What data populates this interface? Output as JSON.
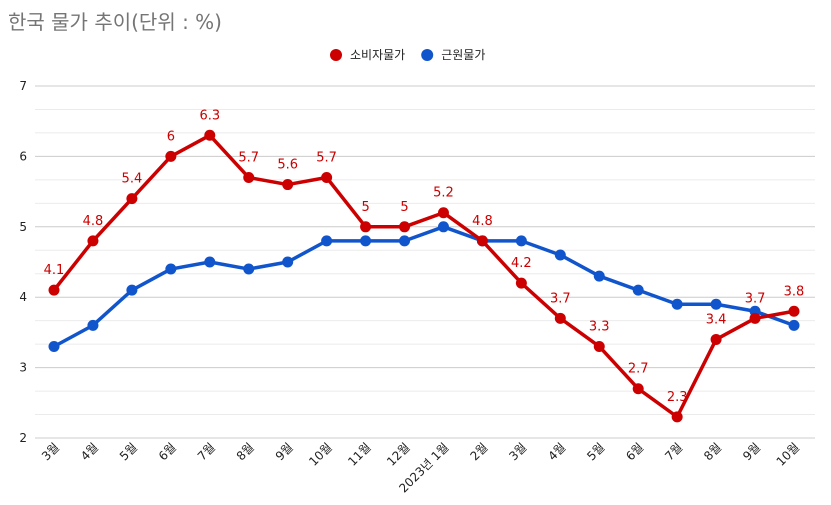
{
  "chart_data": {
    "type": "line",
    "title": "한국 물가 추이(단위 : %)",
    "categories": [
      "3월",
      "4월",
      "5월",
      "6월",
      "7월",
      "8월",
      "9월",
      "10월",
      "11월",
      "12월",
      "2023년 1월",
      "2월",
      "3월",
      "4월",
      "5월",
      "6월",
      "7월",
      "8월",
      "9월",
      "10월"
    ],
    "series": [
      {
        "name": "소비자물가",
        "color": "#cc0000",
        "values": [
          4.1,
          4.8,
          5.4,
          6,
          6.3,
          5.7,
          5.6,
          5.7,
          5,
          5,
          5.2,
          4.8,
          4.2,
          3.7,
          3.3,
          2.7,
          2.3,
          3.4,
          3.7,
          3.8
        ],
        "data_labels": true
      },
      {
        "name": "근원물가",
        "color": "#1155cc",
        "values": [
          3.3,
          3.6,
          4.1,
          4.4,
          4.5,
          4.4,
          4.5,
          4.8,
          4.8,
          4.8,
          5.0,
          4.8,
          4.8,
          4.6,
          4.3,
          4.1,
          3.9,
          3.9,
          3.8,
          3.6
        ],
        "data_labels": false
      }
    ],
    "ylim": [
      2,
      7
    ],
    "yticks": [
      2,
      3,
      4,
      5,
      6,
      7
    ],
    "grid": true,
    "legend_position": "top"
  }
}
